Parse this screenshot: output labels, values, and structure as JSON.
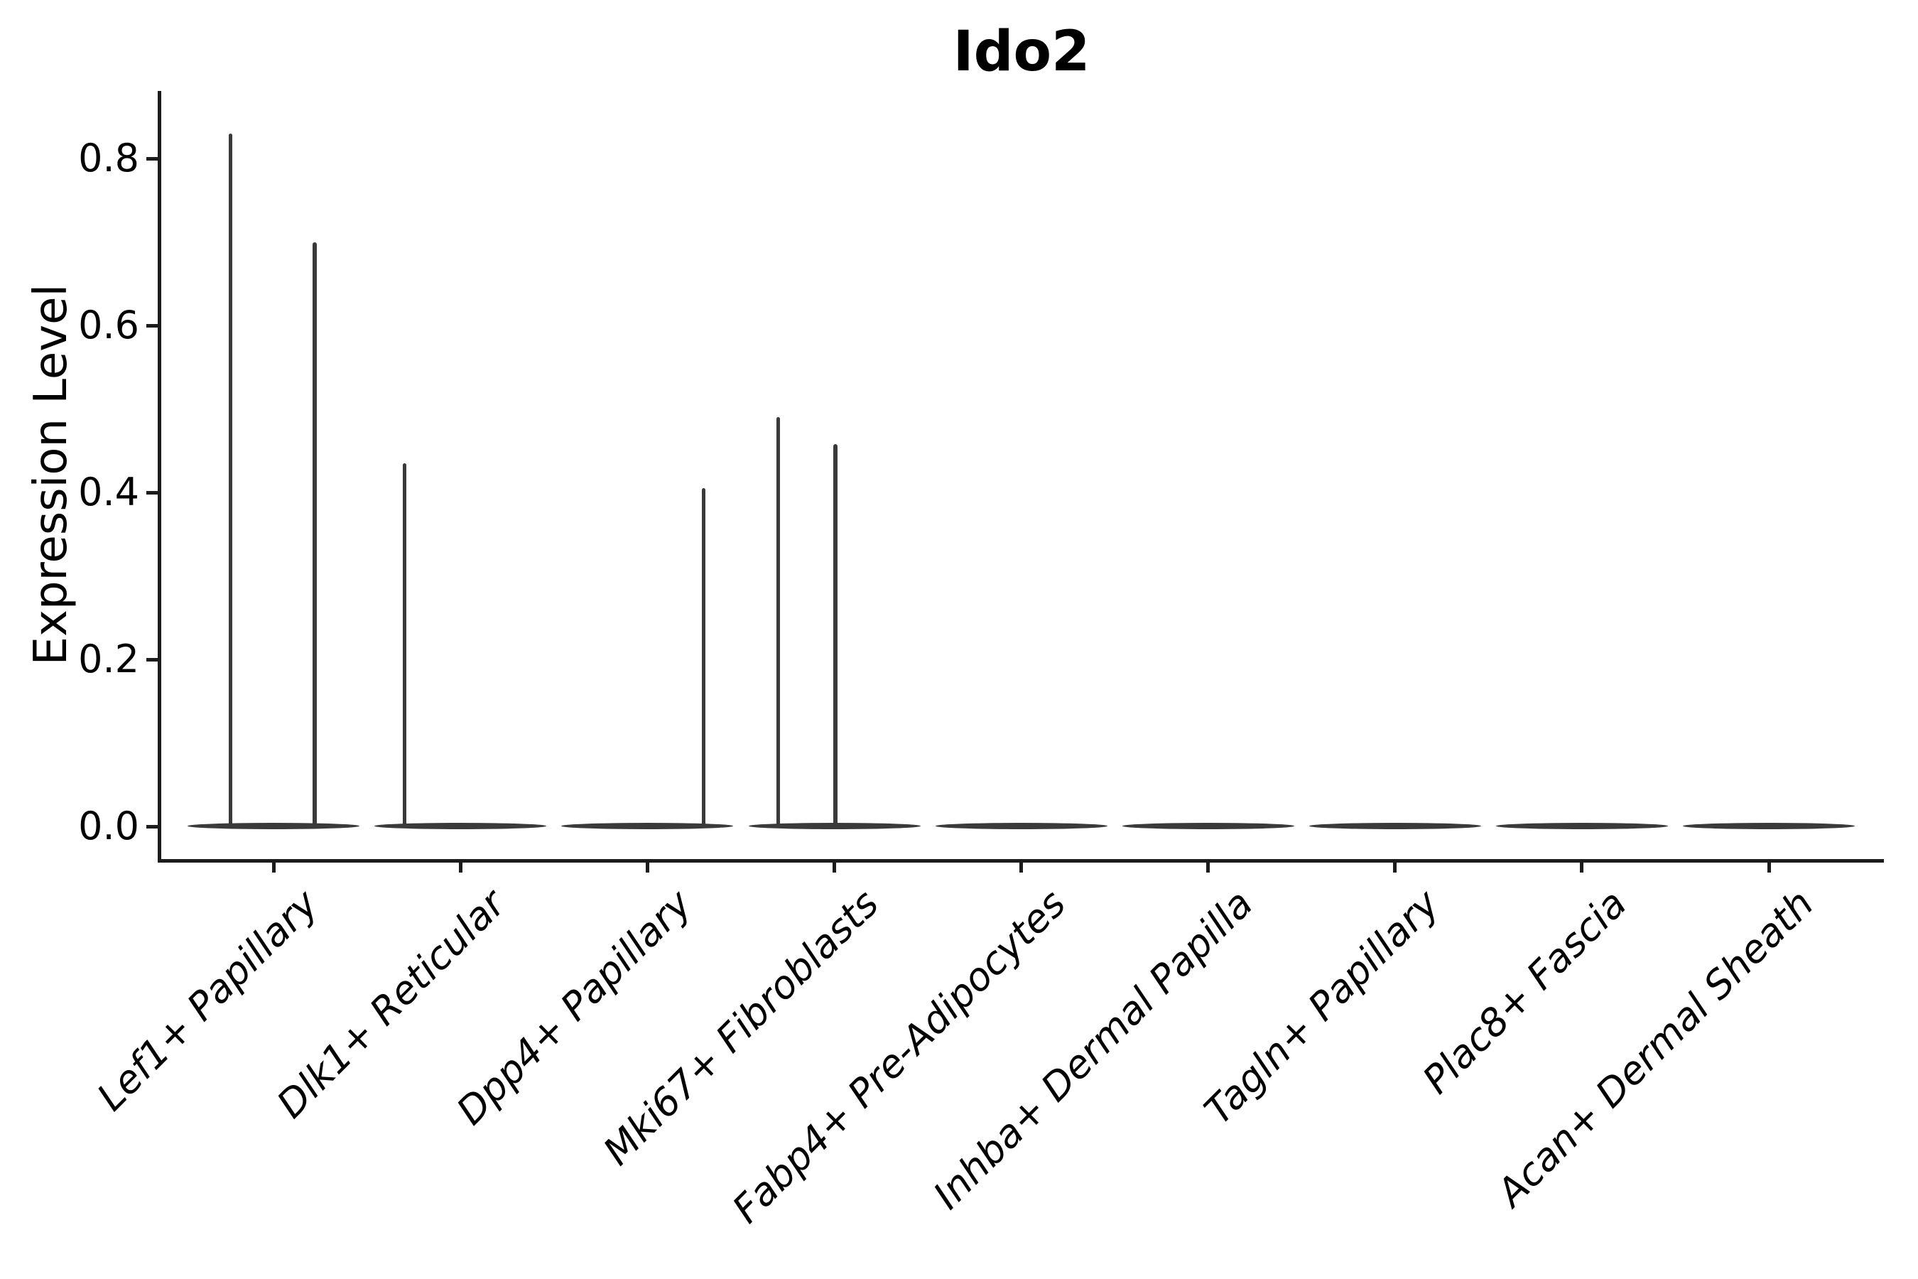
{
  "chart_data": {
    "type": "violin",
    "title": "Ido2",
    "xlabel": "",
    "ylabel": "Expression Level",
    "ylim": [
      -0.045,
      0.885
    ],
    "grid": false,
    "legend": false,
    "yticks": [
      {
        "value": 0.0,
        "label": "0.0"
      },
      {
        "value": 0.2,
        "label": "0.2"
      },
      {
        "value": 0.4,
        "label": "0.4"
      },
      {
        "value": 0.6,
        "label": "0.6"
      },
      {
        "value": 0.8,
        "label": "0.8"
      }
    ],
    "categories": [
      "Lef1+ Papillary",
      "Dlk1+ Reticular",
      "Dpp4+ Papillary",
      "Mki67+ Fibroblasts",
      "Fabp4+ Pre-Adipocytes",
      "Inhba+ Dermal Papilla",
      "Tagln+ Papillary",
      "Plac8+ Fascia",
      "Acan+ Dermal Sheath"
    ],
    "series": [
      {
        "category": "Lef1+ Papillary",
        "bulk_value": 0.0,
        "spikes": [
          {
            "value": 0.83,
            "offset_frac": -0.23
          },
          {
            "value": 0.7,
            "offset_frac": 0.22
          }
        ]
      },
      {
        "category": "Dlk1+ Reticular",
        "bulk_value": 0.0,
        "spikes": [
          {
            "value": 0.435,
            "offset_frac": -0.3
          }
        ]
      },
      {
        "category": "Dpp4+ Papillary",
        "bulk_value": 0.0,
        "spikes": [
          {
            "value": 0.405,
            "offset_frac": 0.3
          }
        ]
      },
      {
        "category": "Mki67+ Fibroblasts",
        "bulk_value": 0.0,
        "spikes": [
          {
            "value": 0.49,
            "offset_frac": -0.3
          },
          {
            "value": 0.458,
            "offset_frac": 0.005
          }
        ]
      },
      {
        "category": "Fabp4+ Pre-Adipocytes",
        "bulk_value": 0.0,
        "spikes": []
      },
      {
        "category": "Inhba+ Dermal Papilla",
        "bulk_value": 0.0,
        "spikes": []
      },
      {
        "category": "Tagln+ Papillary",
        "bulk_value": 0.0,
        "spikes": []
      },
      {
        "category": "Plac8+ Fascia",
        "bulk_value": 0.0,
        "spikes": []
      },
      {
        "category": "Acan+ Dermal Sheath",
        "bulk_value": 0.0,
        "spikes": []
      }
    ],
    "colors": {
      "violin": "#3a3a3a",
      "axis": "#1c1c1c",
      "text": "#000000",
      "background": "#ffffff"
    }
  }
}
